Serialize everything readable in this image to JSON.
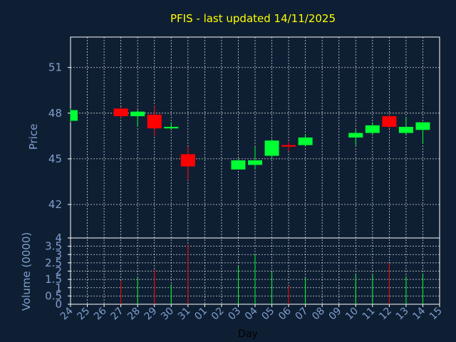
{
  "chart_data": {
    "type": "candlestick",
    "title": "PFIS - last updated 14/11/2025",
    "xlabel": "Day",
    "ylabel_price": "Price",
    "ylabel_volume": "Volume (0000)",
    "x_tick_labels": [
      "24",
      "25",
      "26",
      "27",
      "28",
      "29",
      "30",
      "31",
      "01",
      "02",
      "03",
      "04",
      "05",
      "06",
      "07",
      "08",
      "09",
      "10",
      "11",
      "12",
      "13",
      "14",
      "15"
    ],
    "price_ylim": [
      39.8,
      53.0
    ],
    "price_ticks": [
      "42",
      "45",
      "48",
      "51"
    ],
    "volume_ylim": [
      0,
      4
    ],
    "volume_ticks": [
      "0",
      "0.5",
      "1",
      "1.5",
      "2",
      "2.5",
      "3",
      "3.5",
      "4"
    ],
    "grid": true,
    "colors": {
      "background": "#0f1f33",
      "plot_background": "#ffffff",
      "up": "#00ff33",
      "down": "#ff0000",
      "title": "#ffff00",
      "axis_text": "#7f9fcf"
    },
    "candles": [
      {
        "day": "24",
        "open": 47.5,
        "high": 48.3,
        "low": 47.4,
        "close": 48.2
      },
      {
        "day": "27",
        "open": 48.3,
        "high": 48.4,
        "low": 47.7,
        "close": 47.8
      },
      {
        "day": "28",
        "open": 47.8,
        "high": 48.2,
        "low": 47.1,
        "close": 48.1
      },
      {
        "day": "29",
        "open": 47.9,
        "high": 48.5,
        "low": 46.5,
        "close": 47.0
      },
      {
        "day": "30",
        "open": 47.0,
        "high": 47.4,
        "low": 46.9,
        "close": 47.1
      },
      {
        "day": "31",
        "open": 45.3,
        "high": 45.8,
        "low": 43.6,
        "close": 44.5
      },
      {
        "day": "03",
        "open": 44.3,
        "high": 45.0,
        "low": 44.3,
        "close": 44.9
      },
      {
        "day": "04",
        "open": 44.6,
        "high": 45.8,
        "low": 44.3,
        "close": 44.9
      },
      {
        "day": "05",
        "open": 45.2,
        "high": 46.3,
        "low": 45.0,
        "close": 46.2
      },
      {
        "day": "06",
        "open": 45.9,
        "high": 46.1,
        "low": 45.5,
        "close": 45.8
      },
      {
        "day": "07",
        "open": 45.9,
        "high": 46.6,
        "low": 45.8,
        "close": 46.4
      },
      {
        "day": "10",
        "open": 46.4,
        "high": 46.9,
        "low": 45.9,
        "close": 46.7
      },
      {
        "day": "11",
        "open": 46.7,
        "high": 47.4,
        "low": 46.6,
        "close": 47.2
      },
      {
        "day": "12",
        "open": 47.8,
        "high": 47.9,
        "low": 47.0,
        "close": 47.1
      },
      {
        "day": "13",
        "open": 46.7,
        "high": 47.7,
        "low": 46.6,
        "close": 47.1
      },
      {
        "day": "14",
        "open": 46.9,
        "high": 47.4,
        "low": 46.0,
        "close": 47.4
      }
    ],
    "volumes": [
      {
        "day": "27",
        "value": 1.4,
        "color": "down"
      },
      {
        "day": "28",
        "value": 1.6,
        "color": "up"
      },
      {
        "day": "29",
        "value": 2.1,
        "color": "down"
      },
      {
        "day": "30",
        "value": 1.2,
        "color": "up"
      },
      {
        "day": "31",
        "value": 3.6,
        "color": "down"
      },
      {
        "day": "03",
        "value": 2.3,
        "color": "up"
      },
      {
        "day": "04",
        "value": 3.0,
        "color": "up"
      },
      {
        "day": "05",
        "value": 2.0,
        "color": "up"
      },
      {
        "day": "06",
        "value": 1.1,
        "color": "down"
      },
      {
        "day": "07",
        "value": 1.6,
        "color": "up"
      },
      {
        "day": "10",
        "value": 1.8,
        "color": "up"
      },
      {
        "day": "11",
        "value": 1.8,
        "color": "up"
      },
      {
        "day": "12",
        "value": 2.5,
        "color": "down"
      },
      {
        "day": "13",
        "value": 1.7,
        "color": "up"
      },
      {
        "day": "14",
        "value": 1.8,
        "color": "up"
      }
    ]
  }
}
